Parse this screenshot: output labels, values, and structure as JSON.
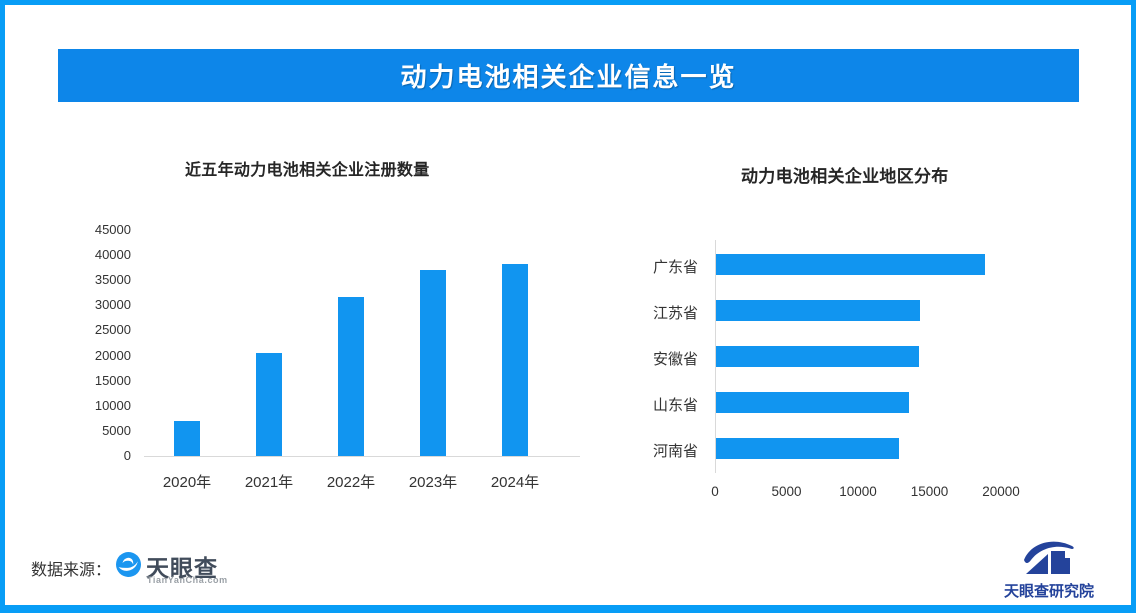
{
  "colors": {
    "accent": "#1195f0",
    "header_bg": "#0d86e9",
    "frame": "#089df6",
    "axis": "#d9d9d9",
    "text_dark": "#333333",
    "tyc_text": "#414c5b",
    "tyc_domain": "#9aa0a6",
    "research_navy": "#24439b"
  },
  "header": {
    "title": "动力电池相关企业信息一览"
  },
  "chart_data": [
    {
      "type": "bar",
      "orientation": "vertical",
      "title": "近五年动力电池相关企业注册数量",
      "categories": [
        "2020年",
        "2021年",
        "2022年",
        "2023年",
        "2024年"
      ],
      "values": [
        7000,
        20500,
        31700,
        37100,
        38200
      ],
      "ylim": [
        0,
        45000
      ],
      "yticks": [
        0,
        5000,
        10000,
        15000,
        20000,
        25000,
        30000,
        35000,
        40000,
        45000
      ],
      "grid": false,
      "legend": false,
      "bar_color": "#1195f0"
    },
    {
      "type": "bar",
      "orientation": "horizontal",
      "title": "动力电池相关企业地区分布",
      "categories": [
        "广东省",
        "江苏省",
        "安徽省",
        "山东省",
        "河南省"
      ],
      "values": [
        18800,
        14300,
        14200,
        13500,
        12800
      ],
      "xlim": [
        0,
        20000
      ],
      "xticks": [
        0,
        5000,
        10000,
        15000,
        20000
      ],
      "grid": false,
      "legend": false,
      "bar_color": "#1195f0"
    }
  ],
  "footer": {
    "source_label": "数据来源：",
    "tianyancha": {
      "name": "天眼查",
      "domain": "TianYanCha.com"
    },
    "research_institute": {
      "name": "天眼查研究院"
    }
  }
}
